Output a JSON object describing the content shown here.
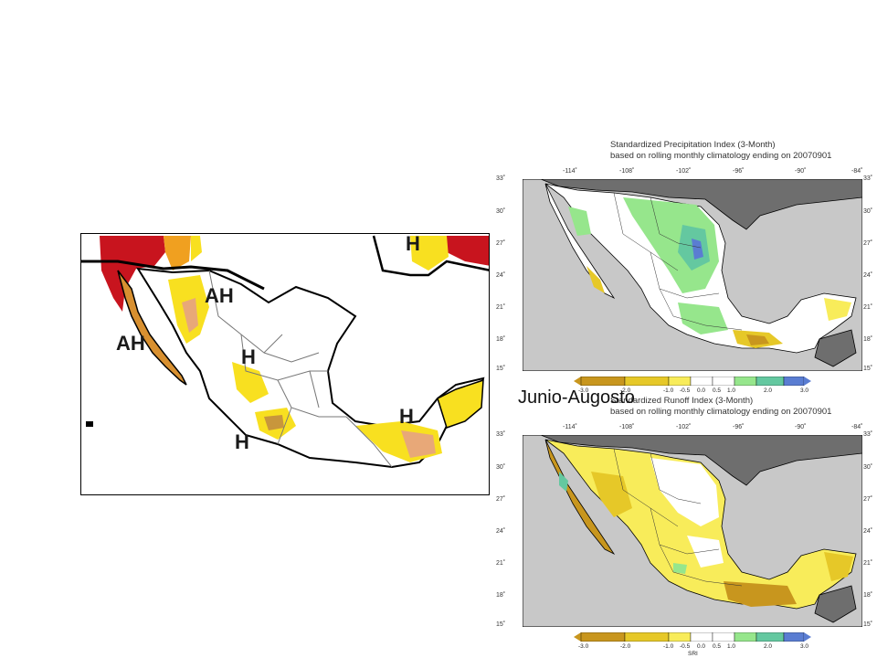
{
  "left_map": {
    "labels": [
      "AH",
      "AH",
      "H",
      "H",
      "H"
    ]
  },
  "caption": "Junio-Augosto",
  "spi_map": {
    "title_line1": "Standardized Precipitation Index (3-Month)",
    "title_line2": "based on rolling monthly climatology ending on 20070901",
    "lon_labels": [
      "-114˚",
      "-108˚",
      "-102˚",
      "-96˚",
      "-90˚",
      "-84˚"
    ],
    "lat_labels": [
      "33˚",
      "30˚",
      "27˚",
      "24˚",
      "21˚",
      "18˚",
      "15˚"
    ],
    "colorbar_labels": [
      "-3.0",
      "-2.0",
      "-1.0",
      "-0.5",
      "0.0",
      "0.5",
      "1.0",
      "2.0",
      "3.0"
    ],
    "colorbar_title": ""
  },
  "sri_map": {
    "title_line1": "Standardized Runoff Index (3-Month)",
    "title_line2": "based on rolling monthly climatology ending on 20070901",
    "lon_labels": [
      "-114˚",
      "-108˚",
      "-102˚",
      "-96˚",
      "-90˚",
      "-84˚"
    ],
    "lat_labels": [
      "33˚",
      "30˚",
      "27˚",
      "24˚",
      "21˚",
      "18˚",
      "15˚"
    ],
    "colorbar_labels": [
      "-3.0",
      "-2.0",
      "-1.0",
      "-0.5",
      "0.0",
      "0.5",
      "1.0",
      "2.0",
      "3.0"
    ],
    "colorbar_title": "SRI"
  },
  "colors": {
    "land": "#ffffff",
    "ocean": "#c8c8c8",
    "usa_guatemala": "#6e6e6e",
    "dry_strong": "#c8961e",
    "dry_mid": "#e6c828",
    "dry_light": "#f8ec5a",
    "wet_light": "#96e68c",
    "wet_mid": "#64c8a0",
    "wet_strong": "#5a7dd2"
  }
}
